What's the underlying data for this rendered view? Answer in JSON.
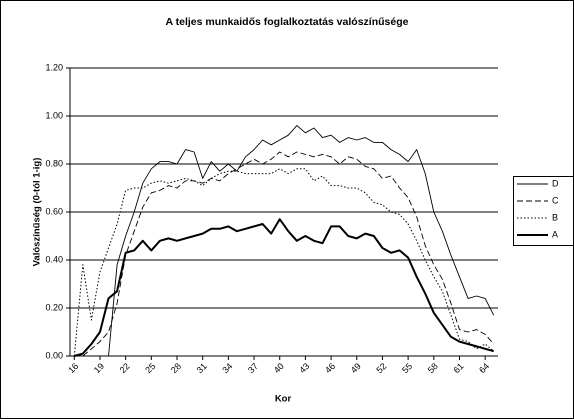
{
  "chart_data": {
    "type": "line",
    "title": "A teljes munkaidős foglalkoztatás valószínűsége",
    "x_label": "Kor",
    "y_label": "Valószínűség (0-tól 1-ig)",
    "x": [
      16,
      17,
      18,
      19,
      20,
      21,
      22,
      23,
      24,
      25,
      26,
      27,
      28,
      29,
      30,
      31,
      32,
      33,
      34,
      35,
      36,
      37,
      38,
      39,
      40,
      41,
      42,
      43,
      44,
      45,
      46,
      47,
      48,
      49,
      50,
      51,
      52,
      53,
      54,
      55,
      56,
      57,
      58,
      59,
      60,
      61,
      62,
      63,
      64,
      65
    ],
    "xlim": [
      15.5,
      65.5
    ],
    "xticks": [
      16,
      19,
      22,
      25,
      28,
      31,
      34,
      37,
      40,
      43,
      46,
      49,
      52,
      55,
      58,
      61,
      64
    ],
    "ylim": [
      0,
      1.2
    ],
    "yticks": [
      {
        "value": 0,
        "label": "0.00"
      },
      {
        "value": 0.2,
        "label": "0.20"
      },
      {
        "value": 0.4,
        "label": "0.40"
      },
      {
        "value": 0.6,
        "label": "0.60"
      },
      {
        "value": 0.8,
        "label": "0.80"
      },
      {
        "value": 1,
        "label": "1.00"
      },
      {
        "value": 1.2,
        "label": "1.20"
      }
    ],
    "grid": true,
    "legend": "right",
    "series": [
      {
        "name": "D",
        "color": "#000000",
        "dash": "solid",
        "width": 0.9,
        "values": [
          0,
          0,
          0,
          0,
          0,
          0.38,
          0.5,
          0.6,
          0.72,
          0.78,
          0.81,
          0.81,
          0.8,
          0.86,
          0.85,
          0.74,
          0.81,
          0.77,
          0.8,
          0.77,
          0.83,
          0.86,
          0.9,
          0.88,
          0.9,
          0.92,
          0.96,
          0.93,
          0.95,
          0.91,
          0.92,
          0.89,
          0.91,
          0.9,
          0.91,
          0.89,
          0.89,
          0.86,
          0.84,
          0.81,
          0.86,
          0.76,
          0.6,
          0.52,
          0.42,
          0.33,
          0.24,
          0.25,
          0.24,
          0.17
        ]
      },
      {
        "name": "C",
        "color": "#000000",
        "dash": "dashed",
        "width": 0.9,
        "values": [
          0,
          0,
          0.03,
          0.06,
          0.1,
          0.22,
          0.42,
          0.52,
          0.62,
          0.68,
          0.69,
          0.71,
          0.7,
          0.73,
          0.73,
          0.72,
          0.74,
          0.73,
          0.76,
          0.78,
          0.8,
          0.82,
          0.8,
          0.82,
          0.85,
          0.83,
          0.85,
          0.84,
          0.83,
          0.84,
          0.83,
          0.8,
          0.83,
          0.82,
          0.79,
          0.78,
          0.74,
          0.75,
          0.7,
          0.66,
          0.58,
          0.46,
          0.38,
          0.32,
          0.22,
          0.11,
          0.1,
          0.11,
          0.09,
          0.05
        ]
      },
      {
        "name": "B",
        "color": "#000000",
        "dash": "dotted",
        "width": 1,
        "values": [
          0,
          0.38,
          0.15,
          0.35,
          0.45,
          0.55,
          0.69,
          0.7,
          0.7,
          0.72,
          0.73,
          0.72,
          0.73,
          0.74,
          0.73,
          0.71,
          0.74,
          0.76,
          0.77,
          0.77,
          0.76,
          0.76,
          0.76,
          0.76,
          0.78,
          0.76,
          0.78,
          0.78,
          0.73,
          0.75,
          0.71,
          0.71,
          0.7,
          0.7,
          0.68,
          0.64,
          0.63,
          0.6,
          0.59,
          0.55,
          0.48,
          0.4,
          0.33,
          0.27,
          0.17,
          0.07,
          0.06,
          0.03,
          0.05,
          0.02
        ]
      },
      {
        "name": "A",
        "color": "#000000",
        "dash": "solid",
        "width": 2,
        "values": [
          0,
          0.01,
          0.05,
          0.1,
          0.24,
          0.27,
          0.43,
          0.44,
          0.48,
          0.44,
          0.48,
          0.49,
          0.48,
          0.49,
          0.5,
          0.51,
          0.53,
          0.53,
          0.54,
          0.52,
          0.53,
          0.54,
          0.55,
          0.51,
          0.57,
          0.52,
          0.48,
          0.5,
          0.48,
          0.47,
          0.54,
          0.54,
          0.5,
          0.49,
          0.51,
          0.5,
          0.45,
          0.43,
          0.44,
          0.41,
          0.33,
          0.26,
          0.18,
          0.13,
          0.08,
          0.06,
          0.05,
          0.04,
          0.03,
          0.02
        ]
      }
    ]
  }
}
